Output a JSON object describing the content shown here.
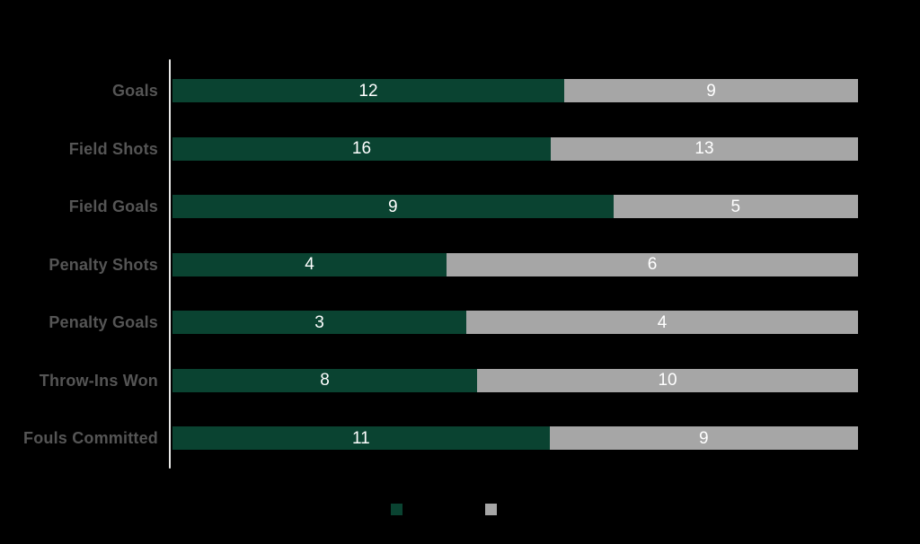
{
  "page": {
    "background": "#000000"
  },
  "colors": {
    "series_green": "#0a4331",
    "series_gray": "#a6a6a6",
    "category_label": "#555555",
    "value_label": "#ffffff",
    "axis_line": "#e9e9e7"
  },
  "chart_data": {
    "type": "bar",
    "orientation": "horizontal",
    "stacking": "percent",
    "title": "",
    "xlabel": "",
    "ylabel": "",
    "categories": [
      "Goals",
      "Field Shots",
      "Field Goals",
      "Penalty Shots",
      "Penalty Goals",
      "Throw-Ins Won",
      "Fouls Committed"
    ],
    "series": [
      {
        "name": "",
        "color": "#0a4331",
        "values": [
          12,
          16,
          9,
          4,
          3,
          8,
          11
        ]
      },
      {
        "name": "",
        "color": "#a6a6a6",
        "values": [
          9,
          13,
          5,
          6,
          4,
          10,
          9
        ]
      }
    ],
    "value_labels": "inside-center",
    "axis": {
      "y_axis_line": true,
      "x_gridlines": false,
      "x_tick_labels": false
    },
    "legend": {
      "position": "bottom",
      "entries": [
        {
          "swatch_color": "#0a4331",
          "label": ""
        },
        {
          "swatch_color": "#a6a6a6",
          "label": ""
        }
      ]
    }
  }
}
